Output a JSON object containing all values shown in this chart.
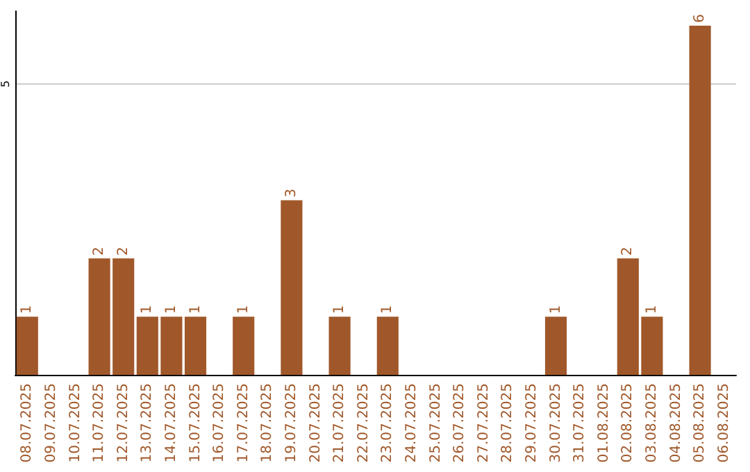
{
  "chart_data": {
    "type": "bar",
    "categories": [
      "08.07.2025",
      "09.07.2025",
      "10.07.2025",
      "11.07.2025",
      "12.07.2025",
      "13.07.2025",
      "14.07.2025",
      "15.07.2025",
      "16.07.2025",
      "17.07.2025",
      "18.07.2025",
      "19.07.2025",
      "20.07.2025",
      "21.07.2025",
      "22.07.2025",
      "23.07.2025",
      "24.07.2025",
      "25.07.2025",
      "26.07.2025",
      "27.07.2025",
      "28.07.2025",
      "29.07.2025",
      "30.07.2025",
      "31.07.2025",
      "01.08.2025",
      "02.08.2025",
      "03.08.2025",
      "04.08.2025",
      "05.08.2025",
      "06.08.2025"
    ],
    "values": [
      1,
      0,
      0,
      2,
      2,
      1,
      1,
      1,
      0,
      1,
      0,
      3,
      0,
      1,
      0,
      1,
      0,
      0,
      0,
      0,
      0,
      0,
      1,
      0,
      0,
      2,
      1,
      0,
      6,
      0
    ],
    "value_labels": [
      "1",
      null,
      null,
      "2",
      "2",
      "1",
      "1",
      "1",
      null,
      "1",
      null,
      "3",
      null,
      "1",
      null,
      "1",
      null,
      null,
      null,
      null,
      null,
      null,
      "1",
      null,
      null,
      "2",
      "1",
      null,
      "6",
      null
    ],
    "color": "#a0582a",
    "ylim": [
      0,
      6.25
    ],
    "yticks": [
      5
    ],
    "grid": "y"
  }
}
